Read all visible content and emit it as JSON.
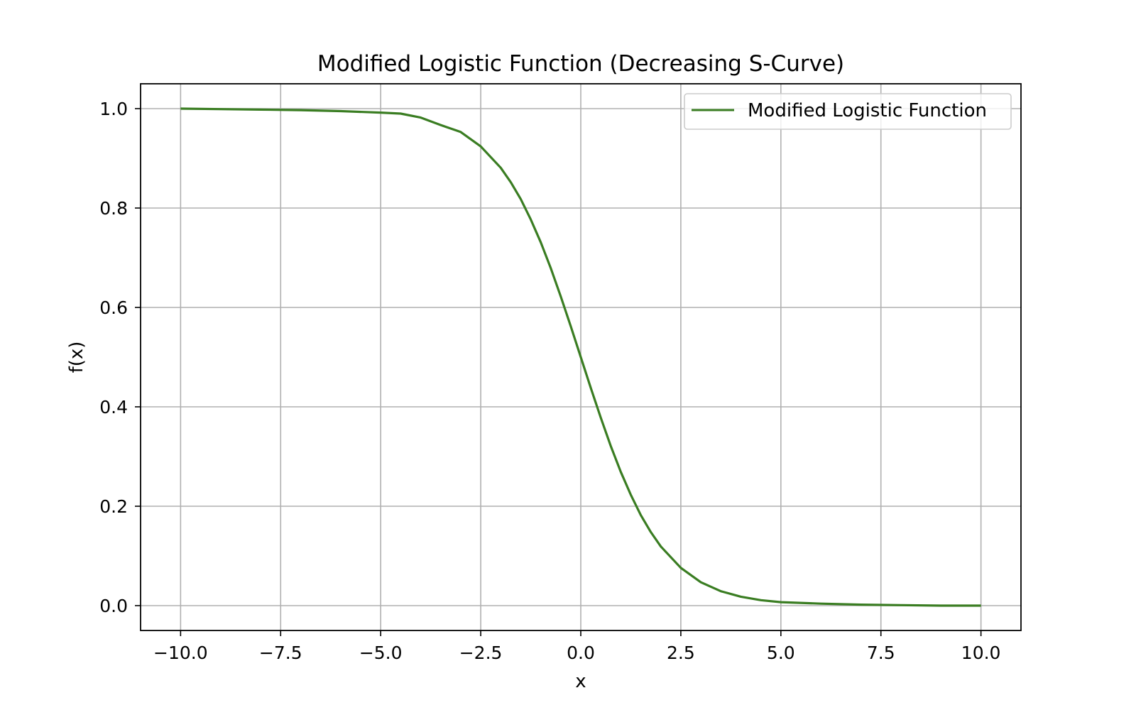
{
  "chart_data": {
    "type": "line",
    "title": "Modified Logistic Function (Decreasing S-Curve)",
    "xlabel": "x",
    "ylabel": "f(x)",
    "xlim": [
      -11.0,
      11.0
    ],
    "ylim": [
      -0.05,
      1.05
    ],
    "xticks": [
      -10.0,
      -7.5,
      -5.0,
      -2.5,
      0.0,
      2.5,
      5.0,
      7.5,
      10.0
    ],
    "xtick_labels": [
      "−10.0",
      "−7.5",
      "−5.0",
      "−2.5",
      "0.0",
      "2.5",
      "5.0",
      "7.5",
      "10.0"
    ],
    "yticks": [
      0.0,
      0.2,
      0.4,
      0.6,
      0.8,
      1.0
    ],
    "ytick_labels": [
      "0.0",
      "0.2",
      "0.4",
      "0.6",
      "0.8",
      "1.0"
    ],
    "grid": true,
    "legend_position": "top-right",
    "series": [
      {
        "name": "Modified Logistic Function",
        "color": "#3a7d22",
        "x": [
          -10,
          -9,
          -8,
          -7,
          -6,
          -5,
          -4.5,
          -4,
          -3.5,
          -3,
          -2.5,
          -2,
          -1.75,
          -1.5,
          -1.25,
          -1,
          -0.75,
          -0.5,
          -0.25,
          0,
          0.25,
          0.5,
          0.75,
          1,
          1.25,
          1.5,
          1.75,
          2,
          2.5,
          3,
          3.5,
          4,
          4.5,
          5,
          6,
          7,
          8,
          9,
          10
        ],
        "y": [
          1.0,
          0.999,
          0.998,
          0.997,
          0.995,
          0.992,
          0.99,
          0.982,
          0.967,
          0.953,
          0.924,
          0.881,
          0.852,
          0.818,
          0.777,
          0.731,
          0.679,
          0.622,
          0.562,
          0.5,
          0.438,
          0.378,
          0.321,
          0.269,
          0.223,
          0.182,
          0.148,
          0.119,
          0.076,
          0.047,
          0.029,
          0.018,
          0.011,
          0.007,
          0.004,
          0.002,
          0.001,
          0.0,
          0.0
        ]
      }
    ]
  }
}
